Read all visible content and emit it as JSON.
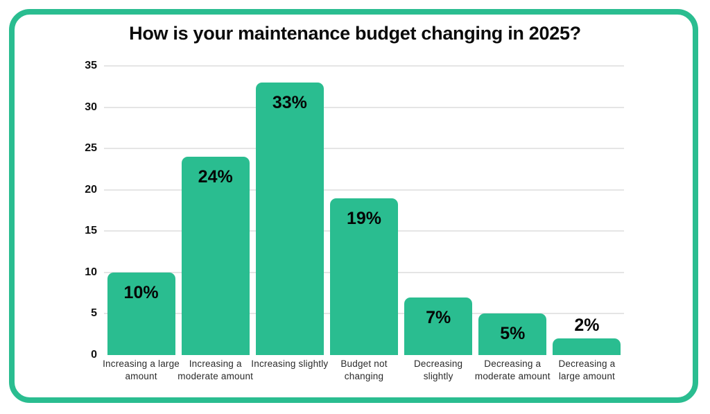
{
  "accent_color": "#2abd90",
  "gridline_color": "#e5e5e5",
  "chart_data": {
    "type": "bar",
    "title": "How is your maintenance budget changing in 2025?",
    "categories": [
      "Increasing a large amount",
      "Increasing a moderate amount",
      "Increasing slightly",
      "Budget not changing",
      "Decreasing slightly",
      "Decreasing a moderate amount",
      "Decreasing a large amount"
    ],
    "values": [
      10,
      24,
      33,
      19,
      7,
      5,
      2
    ],
    "value_labels": [
      "10%",
      "24%",
      "33%",
      "19%",
      "7%",
      "5%",
      "2%"
    ],
    "xlabel": "",
    "ylabel": "",
    "ylim": [
      0,
      35
    ],
    "yticks": [
      0,
      5,
      10,
      15,
      20,
      25,
      30,
      35
    ],
    "grid": true,
    "legend_position": "none",
    "bar_color": "#2abd90",
    "label_color": "#050505"
  }
}
